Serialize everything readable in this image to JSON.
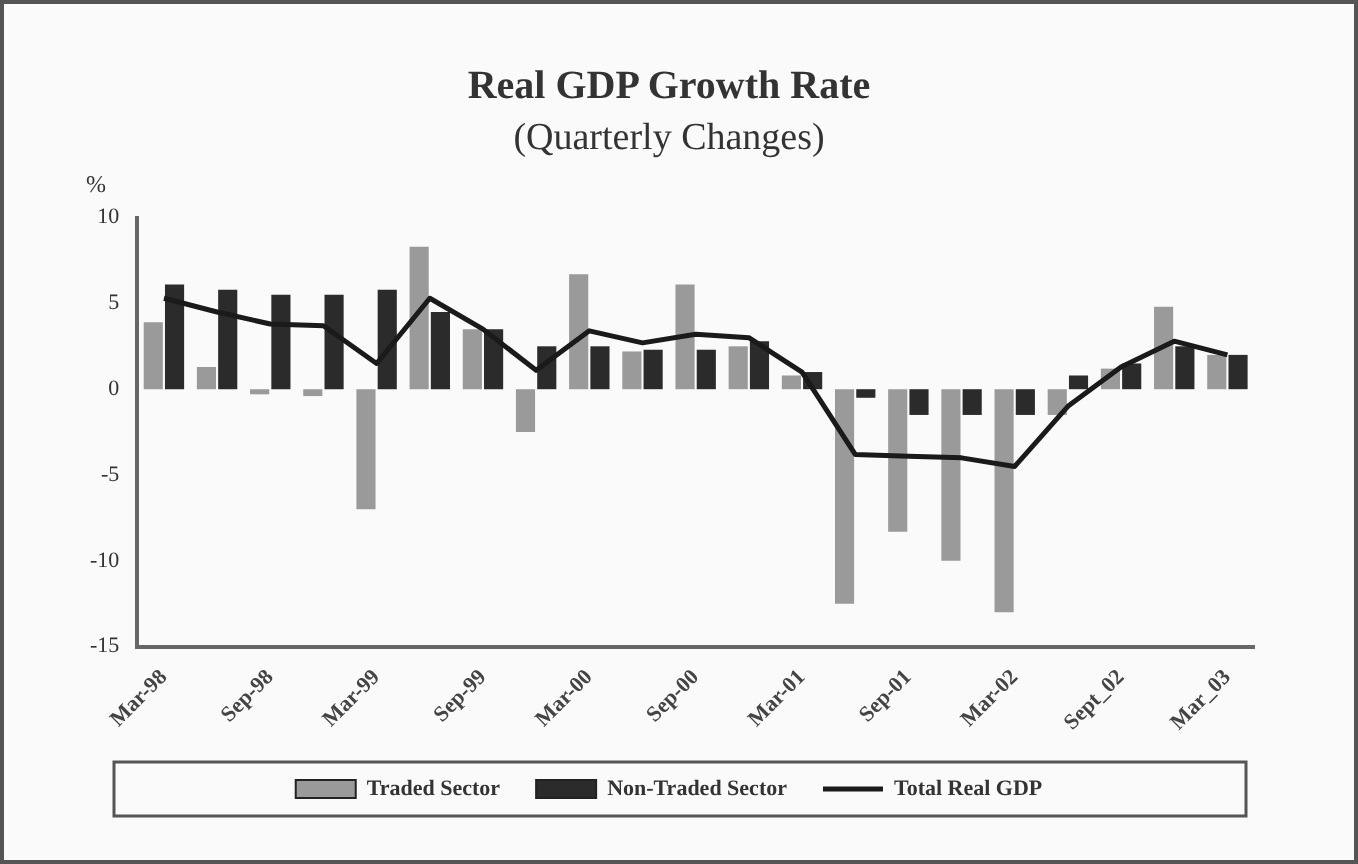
{
  "chart_data": {
    "type": "bar",
    "title": "Real GDP Growth Rate",
    "subtitle": "(Quarterly Changes)",
    "ylabel": "%",
    "categories": [
      "Mar-98",
      null,
      "Sep-98",
      null,
      "Mar-99",
      null,
      "Sep-99",
      null,
      "Mar-00",
      null,
      "Sep-00",
      null,
      "Mar-01",
      null,
      "Sep-01",
      null,
      "Mar-02",
      null,
      "Sept_02",
      null,
      "Mar_03"
    ],
    "series": [
      {
        "name": "Traded Sector",
        "color": "#9a9a9a",
        "values": [
          3.9,
          1.3,
          -0.3,
          -0.4,
          -7,
          8.3,
          3.5,
          -2.5,
          6.7,
          2.2,
          6.1,
          2.5,
          0.8,
          -12.5,
          -8.3,
          -10,
          -13,
          -1.5,
          1.2,
          4.8,
          2
        ]
      },
      {
        "name": "Non-Traded Sector",
        "color": "#2b2b2b",
        "values": [
          6.1,
          5.8,
          5.5,
          5.5,
          5.8,
          4.5,
          3.5,
          2.5,
          2.5,
          2.3,
          2.3,
          2.8,
          1,
          -0.5,
          -1.5,
          -1.5,
          -1.5,
          0.8,
          1.5,
          2.5,
          2
        ]
      },
      {
        "name": "Total Real GDP",
        "type": "line",
        "color": "#1a1a1a",
        "values": [
          5.3,
          4.5,
          3.8,
          3.7,
          1.5,
          5.3,
          3.5,
          1.1,
          3.4,
          2.7,
          3.2,
          3,
          1,
          -3.8,
          -3.9,
          -4,
          -4.5,
          -1,
          1.3,
          2.8,
          2
        ]
      }
    ],
    "ylim": [
      -15,
      10
    ],
    "yticks": [
      -15,
      -10,
      -5,
      0,
      5,
      10
    ],
    "grid": false,
    "legend": "bottom",
    "marker": "none",
    "line_style": "solid"
  }
}
